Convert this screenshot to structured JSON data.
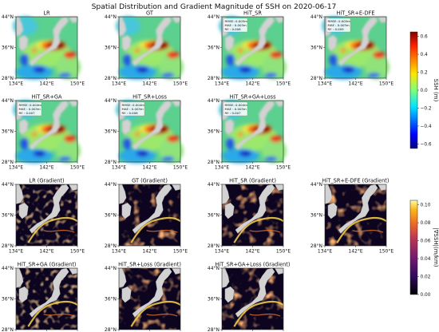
{
  "figure": {
    "title": "Spatial Distribution and Gradient Magnitude of SSH on 2020-06-17"
  },
  "chart_data": {
    "type": "heatmap",
    "rows": [
      {
        "row": 1,
        "kind": "ssh",
        "panels": [
          "LR",
          "GT",
          "HiT_SR",
          "HiT_SR+E-DFE"
        ]
      },
      {
        "row": 2,
        "kind": "ssh",
        "panels": [
          "HiT_SR+GA",
          "HiT_SR+Loss",
          "HiT_SR+GA+Loss"
        ]
      },
      {
        "row": 3,
        "kind": "gradient",
        "panels": [
          "LR (Gradient)",
          "GT (Gradient)",
          "HiT_SR (Gradient)",
          "HiT_SR+E-DFE (Gradient)"
        ]
      },
      {
        "row": 4,
        "kind": "gradient",
        "panels": [
          "HiT_SR+GA (Gradient)",
          "HiT_SR+Loss (Gradient)",
          "HiT_SR+GA+Loss (Gradient)"
        ]
      }
    ],
    "metrics": [
      {
        "panel": "HiT_SR",
        "lines": [
          "RMSE: 0.005m",
          "MAE  : 0.003m",
          "RE   : 0.008"
        ]
      },
      {
        "panel": "HiT_SR+E-DFE",
        "lines": [
          "RMSE: 0.005m",
          "MAE  : 0.003m",
          "RE   : 0.009"
        ]
      },
      {
        "panel": "HiT_SR+GA",
        "lines": [
          "RMSE: 0.004m",
          "MAE  : 0.003m",
          "RE   : 0.007"
        ]
      },
      {
        "panel": "HiT_SR+Loss",
        "lines": [
          "RMSE: 0.004m",
          "MAE  : 0.003m",
          "RE   : 0.008"
        ]
      },
      {
        "panel": "HiT_SR+GA+Loss",
        "lines": [
          "RMSE: 0.004m",
          "MAE  : 0.003m",
          "RE   : 0.007"
        ]
      }
    ],
    "x_ticks": [
      "134°E",
      "142°E",
      "150°E"
    ],
    "y_ticks": [
      "44°N",
      "36°N",
      "28°N"
    ],
    "lon_range": [
      134,
      150
    ],
    "lat_range": [
      28,
      44
    ],
    "colorbars": [
      {
        "id": "ssh",
        "label": "SSH (m)",
        "colormap": "jet",
        "range": [
          -0.65,
          0.65
        ],
        "ticks": [
          "0.6",
          "0.4",
          "0.2",
          "0.0",
          "−0.2",
          "−0.4",
          "−0.6"
        ],
        "tick_values": [
          0.6,
          0.4,
          0.2,
          0.0,
          -0.2,
          -0.4,
          -0.6
        ]
      },
      {
        "id": "gradient",
        "label": "|∇SSH|(m/km)",
        "colormap": "inferno",
        "range": [
          0,
          0.105
        ],
        "ticks": [
          "0.10",
          "0.08",
          "0.06",
          "0.04",
          "0.02",
          "0.00"
        ],
        "tick_values": [
          0.1,
          0.08,
          0.06,
          0.04,
          0.02,
          0.0
        ]
      }
    ],
    "colors": {
      "land": "#d2d2d2",
      "ocean_mid": "#5bd08f",
      "ssh_high": "#8b0000",
      "ssh_low": "#1a1aaa",
      "grad_low": "#0d0520",
      "grad_high": "#fcffa4"
    }
  }
}
